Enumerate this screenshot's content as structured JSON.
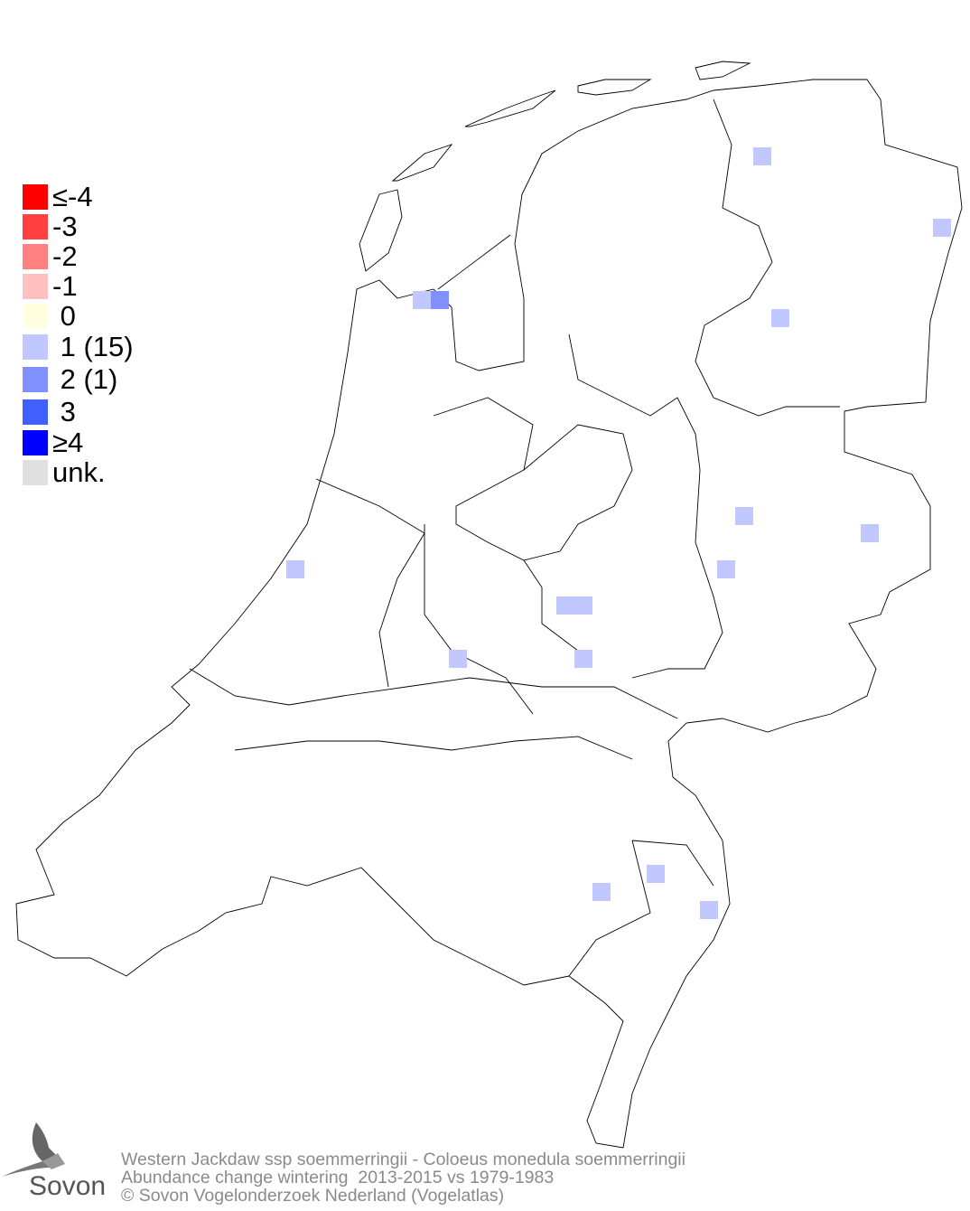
{
  "legend": {
    "items": [
      {
        "label": "≤-4",
        "color": "#ff0000"
      },
      {
        "label": "-3",
        "color": "#ff4040"
      },
      {
        "label": "-2",
        "color": "#ff8080"
      },
      {
        "label": "-1",
        "color": "#ffc0c0"
      },
      {
        "label": " 0",
        "color": "#ffffe0"
      },
      {
        "label": " 1 (15)",
        "color": "#c0c8ff"
      },
      {
        "label": " 2 (1)",
        "color": "#8090ff"
      },
      {
        "label": " 3",
        "color": "#4060ff"
      },
      {
        "label": "≥4",
        "color": "#0000ff"
      },
      {
        "label": "unk.",
        "color": "#e0e0e0"
      }
    ]
  },
  "footer": {
    "line1": "Western Jackdaw ssp soemmerringii - Coloeus monedula soemmerringii",
    "line2": "Abundance change wintering  2013-2015 vs 1979-1983",
    "line3": "© Sovon Vogelonderzoek Nederland (Vogelatlas)"
  },
  "logo": {
    "text": "Sovon"
  }
}
